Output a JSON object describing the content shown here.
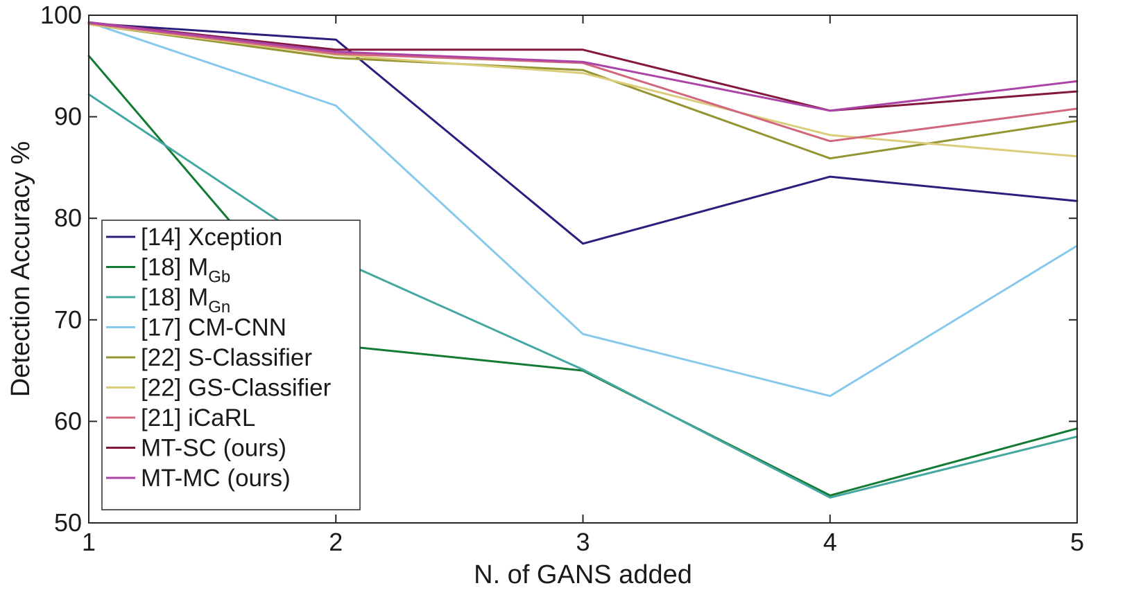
{
  "chart_data": {
    "type": "line",
    "title": "",
    "xlabel": "N. of GANS added",
    "ylabel": "Detection Accuracy %",
    "xlim": [
      1,
      5
    ],
    "ylim": [
      50,
      100
    ],
    "x": [
      1,
      2,
      3,
      4,
      5
    ],
    "x_ticks": [
      "1",
      "2",
      "3",
      "4",
      "5"
    ],
    "y_ticks": [
      "50",
      "60",
      "70",
      "80",
      "90",
      "100"
    ],
    "grid": false,
    "legend_position": "bottom-left",
    "series": [
      {
        "name": "[14] Xception",
        "label_main": "[14] Xception",
        "label_sub": "",
        "color": "#2b1f7e",
        "values": [
          99.2,
          97.6,
          77.5,
          84.1,
          81.7
        ]
      },
      {
        "name": "[18] M_Gb",
        "label_main": "[18] M",
        "label_sub": "Gb",
        "color": "#127a33",
        "values": [
          96.0,
          67.5,
          65.0,
          52.7,
          59.3
        ]
      },
      {
        "name": "[18] M_Gn",
        "label_main": "[18] M",
        "label_sub": "Gn",
        "color": "#45a8a0",
        "values": [
          92.2,
          76.0,
          65.1,
          52.5,
          58.5
        ]
      },
      {
        "name": "[17] CM-CNN",
        "label_main": "[17] CM-CNN",
        "label_sub": "",
        "color": "#87c9ec",
        "values": [
          99.3,
          91.1,
          68.6,
          62.5,
          77.3
        ]
      },
      {
        "name": "[22] S-Classifier",
        "label_main": "[22] S-Classifier",
        "label_sub": "",
        "color": "#949432",
        "values": [
          99.1,
          95.8,
          94.6,
          85.9,
          89.6
        ]
      },
      {
        "name": "[22] GS-Classifier",
        "label_main": "[22] GS-Classifier",
        "label_sub": "",
        "color": "#dccd7c",
        "values": [
          99.1,
          96.1,
          94.3,
          88.2,
          86.1
        ]
      },
      {
        "name": "[21] iCaRL",
        "label_main": "[21] iCaRL",
        "label_sub": "",
        "color": "#d0677c",
        "values": [
          99.2,
          96.2,
          95.3,
          87.6,
          90.8
        ]
      },
      {
        "name": "MT-SC (ours)",
        "label_main": "MT-SC (ours)",
        "label_sub": "",
        "color": "#84173f",
        "values": [
          99.3,
          96.6,
          96.6,
          90.6,
          92.5
        ]
      },
      {
        "name": "MT-MC (ours)",
        "label_main": "MT-MC (ours)",
        "label_sub": "",
        "color": "#ab44a6",
        "values": [
          99.3,
          96.4,
          95.4,
          90.6,
          93.5
        ]
      }
    ]
  }
}
